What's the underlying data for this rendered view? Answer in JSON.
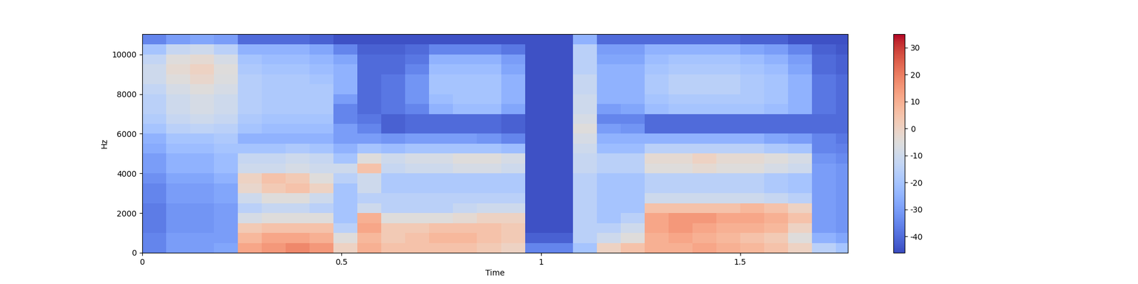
{
  "chart_data": {
    "type": "heatmap",
    "x_label": "Time",
    "y_label": "Hz",
    "color": "coolwarm",
    "x": [
      0,
      0.06,
      0.12,
      0.18,
      0.24,
      0.3,
      0.36,
      0.42,
      0.48,
      0.54,
      0.6,
      0.66,
      0.72,
      0.78,
      0.84,
      0.9,
      0.96,
      1.02,
      1.08,
      1.14,
      1.2,
      1.26,
      1.32,
      1.38,
      1.44,
      1.5,
      1.56,
      1.62,
      1.68,
      1.74,
      1.77
    ],
    "y": [
      0,
      500,
      1000,
      1500,
      2000,
      2500,
      3000,
      3500,
      4000,
      4500,
      5000,
      5500,
      6000,
      6500,
      7000,
      7500,
      8000,
      8500,
      9000,
      9500,
      10000,
      10500,
      11025
    ],
    "cells": [
      [
        -35,
        -35,
        -37,
        -37,
        -37,
        -35,
        -35,
        -33,
        -30,
        -30,
        -27,
        -25,
        -20,
        -17,
        -15,
        -15,
        -13,
        -10,
        -10,
        -13,
        -20,
        -35
      ],
      [
        -30,
        -30,
        -32,
        -32,
        -32,
        -30,
        -30,
        -28,
        -25,
        -25,
        -22,
        -20,
        -15,
        -12,
        -10,
        -10,
        -8,
        -5,
        -3,
        -5,
        -12,
        -30
      ],
      [
        -30,
        -30,
        -32,
        -32,
        -32,
        -30,
        -30,
        -28,
        -25,
        -25,
        -22,
        -20,
        -14,
        -10,
        -8,
        -8,
        -5,
        -2,
        0,
        -3,
        -10,
        -28
      ],
      [
        -28,
        -30,
        -30,
        -30,
        -30,
        -28,
        -28,
        -25,
        -22,
        -22,
        -20,
        -18,
        -15,
        -12,
        -10,
        -10,
        -8,
        -6,
        -5,
        -8,
        -15,
        -30
      ],
      [
        12,
        8,
        3,
        -8,
        -15,
        -10,
        -2,
        0,
        -10,
        -12,
        -20,
        -25,
        -20,
        -18,
        -16,
        -16,
        -16,
        -16,
        -18,
        -20,
        -25,
        -40
      ],
      [
        15,
        12,
        5,
        -5,
        -12,
        -5,
        3,
        5,
        -10,
        -12,
        -20,
        -25,
        -22,
        -20,
        -18,
        -18,
        -18,
        -18,
        -20,
        -22,
        -25,
        -40
      ],
      [
        18,
        12,
        5,
        -5,
        -12,
        -5,
        5,
        3,
        -8,
        -10,
        -18,
        -25,
        -22,
        -20,
        -18,
        -18,
        -18,
        -18,
        -20,
        -22,
        -25,
        -40
      ],
      [
        15,
        10,
        5,
        -5,
        -15,
        -10,
        0,
        -5,
        -10,
        -12,
        -20,
        -25,
        -22,
        -20,
        -18,
        -18,
        -18,
        -20,
        -22,
        -24,
        -28,
        -42
      ],
      [
        0,
        -5,
        -15,
        -20,
        -20,
        -20,
        -20,
        -15,
        -10,
        -20,
        -25,
        -30,
        -30,
        -35,
        -35,
        -30,
        -25,
        -25,
        -25,
        -28,
        -35,
        -45
      ],
      [
        10,
        8,
        12,
        10,
        -10,
        -15,
        -10,
        -10,
        5,
        -5,
        -20,
        -30,
        -35,
        -38,
        -40,
        -40,
        -40,
        -40,
        -40,
        -40,
        -42,
        -45
      ],
      [
        5,
        3,
        3,
        -5,
        -15,
        -15,
        -18,
        -18,
        -12,
        -10,
        -22,
        -32,
        -42,
        -42,
        -38,
        -38,
        -38,
        -38,
        -40,
        -40,
        -42,
        -45
      ],
      [
        5,
        5,
        3,
        -5,
        -15,
        -15,
        -18,
        -18,
        -10,
        -8,
        -20,
        -30,
        -40,
        -40,
        -35,
        -32,
        -32,
        -32,
        -35,
        -38,
        -40,
        -45
      ],
      [
        5,
        8,
        5,
        -5,
        -15,
        -15,
        -18,
        -18,
        -10,
        -8,
        -20,
        -30,
        -40,
        -40,
        -25,
        -22,
        -20,
        -20,
        -22,
        -25,
        -35,
        -45
      ],
      [
        5,
        8,
        5,
        -3,
        -12,
        -15,
        -18,
        -18,
        -8,
        -5,
        -20,
        -30,
        -40,
        -40,
        -22,
        -20,
        -20,
        -20,
        -22,
        -25,
        -35,
        -45
      ],
      [
        3,
        5,
        5,
        0,
        -10,
        -15,
        -18,
        -18,
        -8,
        -5,
        -20,
        -32,
        -40,
        -40,
        -22,
        -20,
        -20,
        -20,
        -22,
        -25,
        -35,
        -45
      ],
      [
        0,
        3,
        3,
        0,
        -10,
        -15,
        -18,
        -18,
        -10,
        -8,
        -22,
        -35,
        -42,
        -42,
        -28,
        -25,
        -25,
        -25,
        -28,
        -30,
        -38,
        -45
      ],
      [
        -35,
        -42,
        -45,
        -45,
        -45,
        -45,
        -45,
        -45,
        -45,
        -45,
        -45,
        -45,
        -45,
        -45,
        -45,
        -45,
        -45,
        -45,
        -45,
        -45,
        -45,
        -45
      ],
      [
        -35,
        -42,
        -45,
        -45,
        -45,
        -45,
        -45,
        -45,
        -45,
        -45,
        -45,
        -45,
        -45,
        -45,
        -45,
        -45,
        -45,
        -45,
        -45,
        -45,
        -45,
        -45
      ],
      [
        -20,
        -15,
        -15,
        -15,
        -15,
        -15,
        -15,
        -15,
        -12,
        -12,
        -10,
        -8,
        -5,
        -8,
        -10,
        -10,
        -12,
        -12,
        -15,
        -15,
        -15,
        -25
      ],
      [
        0,
        -10,
        -15,
        -20,
        -20,
        -20,
        -20,
        -20,
        -15,
        -15,
        -22,
        -25,
        -30,
        -35,
        -30,
        -25,
        -25,
        -25,
        -25,
        -28,
        -30,
        -40
      ],
      [
        5,
        -5,
        -10,
        -15,
        -20,
        -20,
        -20,
        -20,
        -15,
        -15,
        -22,
        -25,
        -32,
        -35,
        -28,
        -25,
        -25,
        -25,
        -25,
        -28,
        -30,
        -40
      ],
      [
        10,
        10,
        12,
        12,
        5,
        -10,
        -15,
        -15,
        -5,
        -3,
        -15,
        -25,
        -40,
        -40,
        -22,
        -20,
        -18,
        -18,
        -20,
        -22,
        -25,
        -40
      ],
      [
        10,
        12,
        15,
        15,
        5,
        -10,
        -15,
        -15,
        -5,
        -3,
        -15,
        -25,
        -40,
        -40,
        -20,
        -18,
        -15,
        -15,
        -18,
        -20,
        -25,
        -40
      ],
      [
        12,
        10,
        12,
        15,
        5,
        -10,
        -15,
        -15,
        -3,
        0,
        -15,
        -25,
        -40,
        -40,
        -20,
        -18,
        -15,
        -15,
        -18,
        -20,
        -25,
        -40
      ],
      [
        10,
        8,
        10,
        12,
        5,
        -10,
        -15,
        -15,
        -5,
        -3,
        -15,
        -25,
        -40,
        -40,
        -20,
        -18,
        -15,
        -15,
        -18,
        -20,
        -25,
        -40
      ],
      [
        8,
        5,
        10,
        12,
        8,
        -10,
        -15,
        -15,
        -5,
        -3,
        -15,
        -25,
        -40,
        -40,
        -20,
        -18,
        -18,
        -18,
        -20,
        -22,
        -28,
        -42
      ],
      [
        5,
        3,
        8,
        10,
        5,
        -12,
        -18,
        -18,
        -8,
        -5,
        -18,
        -28,
        -40,
        -40,
        -22,
        -20,
        -20,
        -20,
        -22,
        -25,
        -30,
        -42
      ],
      [
        0,
        -5,
        0,
        5,
        0,
        -15,
        -20,
        -20,
        -10,
        -8,
        -20,
        -30,
        -40,
        -40,
        -25,
        -25,
        -25,
        -25,
        -28,
        -30,
        -35,
        -45
      ],
      [
        -15,
        -25,
        -30,
        -30,
        -30,
        -30,
        -30,
        -30,
        -30,
        -32,
        -35,
        -35,
        -40,
        -40,
        -38,
        -38,
        -38,
        -38,
        -40,
        -40,
        -42,
        -45
      ],
      [
        -20,
        -28,
        -32,
        -32,
        -32,
        -32,
        -32,
        -32,
        -32,
        -34,
        -36,
        -38,
        -40,
        -40,
        -40,
        -40,
        -40,
        -40,
        -42,
        -42,
        -44,
        -45
      ]
    ],
    "xlim": [
      0,
      1.77
    ],
    "ylim": [
      0,
      11025
    ],
    "xticks": [
      0,
      0.5,
      1,
      1.5
    ],
    "yticks": [
      0,
      2000,
      4000,
      6000,
      8000,
      10000
    ],
    "colorbar": {
      "range": [
        -46,
        35
      ],
      "ticks": [
        -40,
        -30,
        -20,
        -10,
        0,
        10,
        20,
        30
      ]
    }
  }
}
